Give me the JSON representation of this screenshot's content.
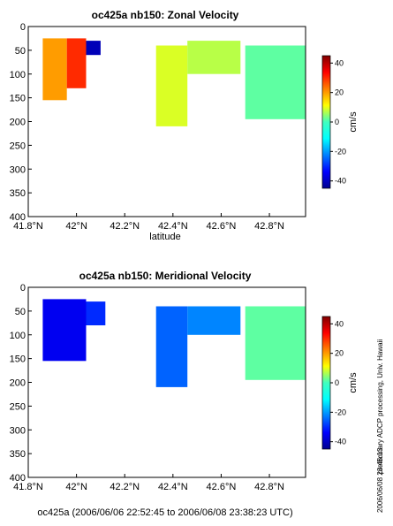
{
  "chart_data": [
    {
      "type": "heatmap",
      "title": "oc425a nb150: Zonal Velocity",
      "xlabel": "latitude",
      "ylabel": "",
      "xlim": [
        41.8,
        42.95
      ],
      "ylim": [
        400,
        0
      ],
      "x_ticks": [
        "41.8°N",
        "42°N",
        "42.2°N",
        "42.4°N",
        "42.6°N",
        "42.8°N"
      ],
      "y_ticks": [
        "0",
        "50",
        "100",
        "150",
        "200",
        "250",
        "300",
        "350",
        "400"
      ],
      "colorbar": {
        "unit": "cm/s",
        "range": [
          -45,
          45
        ],
        "ticks": [
          "40",
          "20",
          "0",
          "-20",
          "-40"
        ]
      },
      "segments": [
        {
          "lat_start": 41.86,
          "lat_end": 41.96,
          "depth_top": 25,
          "depth_bottom": 155,
          "value": 20,
          "label": "yellow-green core"
        },
        {
          "lat_start": 41.96,
          "lat_end": 42.04,
          "depth_top": 25,
          "depth_bottom": 130,
          "value": 30,
          "label": "yellow core"
        },
        {
          "lat_start": 42.04,
          "lat_end": 42.1,
          "depth_top": 30,
          "depth_bottom": 60,
          "value": -40,
          "label": "blue edge"
        },
        {
          "lat_start": 42.33,
          "lat_end": 42.46,
          "depth_top": 40,
          "depth_bottom": 210,
          "value": 8,
          "label": "green band"
        },
        {
          "lat_start": 42.46,
          "lat_end": 42.68,
          "depth_top": 30,
          "depth_bottom": 100,
          "value": 5,
          "label": "green surface"
        },
        {
          "lat_start": 42.7,
          "lat_end": 42.95,
          "depth_top": 40,
          "depth_bottom": 195,
          "value": -3,
          "label": "cyan region"
        }
      ]
    },
    {
      "type": "heatmap",
      "title": "oc425a nb150: Meridional Velocity",
      "xlabel": "",
      "ylabel": "",
      "xlim": [
        41.8,
        42.95
      ],
      "ylim": [
        400,
        0
      ],
      "x_ticks": [
        "41.8°N",
        "42°N",
        "42.2°N",
        "42.4°N",
        "42.6°N",
        "42.8°N"
      ],
      "y_ticks": [
        "0",
        "50",
        "100",
        "150",
        "200",
        "250",
        "300",
        "350",
        "400"
      ],
      "colorbar": {
        "unit": "cm/s",
        "range": [
          -45,
          45
        ],
        "ticks": [
          "40",
          "20",
          "0",
          "-20",
          "-40"
        ]
      },
      "segments": [
        {
          "lat_start": 41.86,
          "lat_end": 42.04,
          "depth_top": 25,
          "depth_bottom": 155,
          "value": -35,
          "label": "dark blue core"
        },
        {
          "lat_start": 42.04,
          "lat_end": 42.12,
          "depth_top": 30,
          "depth_bottom": 80,
          "value": -30,
          "label": "blue edge"
        },
        {
          "lat_start": 42.33,
          "lat_end": 42.46,
          "depth_top": 40,
          "depth_bottom": 210,
          "value": -25,
          "label": "blue band"
        },
        {
          "lat_start": 42.46,
          "lat_end": 42.68,
          "depth_top": 40,
          "depth_bottom": 100,
          "value": -22,
          "label": "blue surface"
        },
        {
          "lat_start": 42.7,
          "lat_end": 42.95,
          "depth_top": 40,
          "depth_bottom": 195,
          "value": -3,
          "label": "cyan-green region"
        }
      ]
    }
  ],
  "side_text": {
    "processing": "preliminary ADCP processing,   Univ. Hawaii",
    "timestamp": "2006/06/08 23:45:13"
  },
  "footer": "oc425a (2006/06/06 22:52:45 to 2006/06/08 23:38:23 UTC)"
}
